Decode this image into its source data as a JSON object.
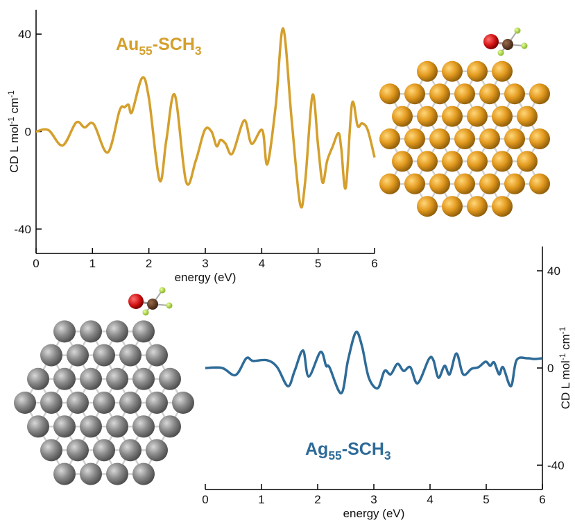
{
  "chart_data": [
    {
      "type": "line",
      "color": "#d49f2c",
      "annotation": [
        "Au",
        "55",
        "-SCH",
        "3"
      ],
      "ylabel": [
        "CD L mol",
        "-1",
        " cm",
        "-1"
      ],
      "xlabel": "energy (eV)",
      "xlim": [
        0,
        6
      ],
      "xticks": [
        0,
        1,
        2,
        3,
        4,
        5,
        6
      ],
      "ylim": [
        -50,
        50
      ],
      "yticks": [
        -40,
        0,
        40
      ],
      "x": [
        0,
        0.22,
        0.47,
        0.71,
        0.86,
        1.02,
        1.27,
        1.48,
        1.57,
        1.64,
        1.7,
        1.88,
        2.0,
        2.19,
        2.31,
        2.46,
        2.66,
        2.83,
        2.99,
        3.11,
        3.2,
        3.27,
        3.36,
        3.48,
        3.69,
        3.82,
        4.01,
        4.1,
        4.25,
        4.38,
        4.53,
        4.68,
        4.77,
        4.9,
        5.0,
        5.08,
        5.16,
        5.26,
        5.36,
        5.41,
        5.49,
        5.6,
        5.7,
        5.78,
        5.88,
        6.0
      ],
      "values": [
        0,
        0.6,
        -5.7,
        3.7,
        1.7,
        3.1,
        -8.6,
        8.6,
        10,
        11,
        8,
        22,
        13.7,
        -20,
        -3.4,
        15,
        -20.6,
        -12,
        0.6,
        0,
        -6,
        -3.4,
        -5,
        -9,
        4.6,
        -5,
        0.6,
        -13.4,
        11,
        42.3,
        5,
        -29.7,
        -20.6,
        15,
        -6,
        -21,
        -12,
        -6,
        -0.6,
        -6.9,
        -23,
        11.4,
        2.3,
        3.4,
        0.6,
        -10.6
      ]
    },
    {
      "type": "line",
      "color": "#2e6b98",
      "annotation": [
        "Ag",
        "55",
        "-SCH",
        "3"
      ],
      "ylabel": [
        "CD L mol",
        "-1",
        " cm",
        "-1"
      ],
      "xlabel": "energy (eV)",
      "xlim": [
        0,
        6
      ],
      "xticks": [
        0,
        1,
        2,
        3,
        4,
        5,
        6
      ],
      "ylim": [
        -50,
        50
      ],
      "yticks": [
        -40,
        0,
        40
      ],
      "x": [
        0,
        0.3,
        0.54,
        0.73,
        0.85,
        1.1,
        1.28,
        1.47,
        1.59,
        1.74,
        1.84,
        2.05,
        2.15,
        2.21,
        2.42,
        2.54,
        2.68,
        2.79,
        2.91,
        3.07,
        3.19,
        3.3,
        3.42,
        3.53,
        3.65,
        3.78,
        3.98,
        4.06,
        4.15,
        4.26,
        4.35,
        4.47,
        4.59,
        4.74,
        4.86,
        4.99,
        5.07,
        5.14,
        5.23,
        5.3,
        5.44,
        5.54,
        5.73,
        5.85,
        6.0
      ],
      "values": [
        0,
        0,
        -2.9,
        4,
        2.9,
        3.2,
        0.3,
        -7.5,
        -1.2,
        7.2,
        -3.5,
        6.6,
        0.9,
        0.3,
        -10.4,
        3.2,
        14.7,
        8.9,
        -4,
        -8.3,
        -1.2,
        -2.6,
        1.7,
        -1.2,
        0.3,
        -6.3,
        3.7,
        3.2,
        -4,
        0.9,
        -2.6,
        6,
        -2.6,
        -0.3,
        0.3,
        2.6,
        0.9,
        2.3,
        -2.6,
        0.3,
        -7.5,
        3.2,
        4,
        3.7,
        4
      ]
    }
  ]
}
